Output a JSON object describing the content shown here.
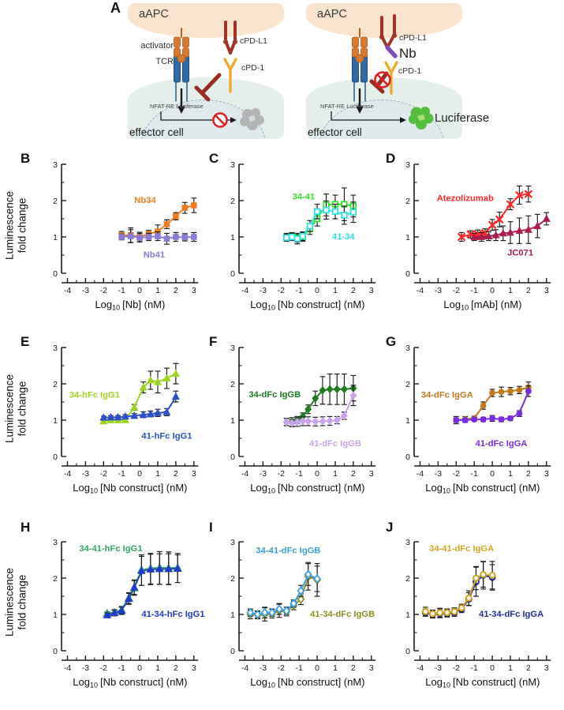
{
  "panel_a": {
    "label": "A",
    "left": {
      "aapc": "aAPC",
      "activator": "activator",
      "tcr": "TCR",
      "cpdl1": "cPD-L1",
      "cpd1": "cPD-1",
      "nfat": "NFAT-RE Luciferase",
      "effector": "effector cell"
    },
    "right": {
      "aapc": "aAPC",
      "cpdl1": "cPD-L1",
      "nb": "Nb",
      "cpd1": "cPD-1",
      "nfat": "NFAT-RE Luciferase",
      "effector": "effector cell",
      "luciferase": "Luciferase"
    }
  },
  "ylabel": {
    "line1": "Luminescence",
    "line2": "fold change"
  },
  "chart_data": [
    {
      "label": "B",
      "type": "line",
      "xlabel_pre": "Log",
      "xlabel_sub": "10",
      "xlabel_post": "[Nb] (nM)",
      "xticks": [
        -4,
        -3,
        -2,
        -1,
        0,
        1,
        2,
        3
      ],
      "yticks": [
        0,
        1,
        2,
        3
      ],
      "ylim": [
        0,
        3
      ],
      "series": [
        {
          "name": "Nb34",
          "color": "#F07E1E",
          "marker": "square",
          "open": false,
          "label_x": 0.3,
          "label_y": 2.0,
          "x": [
            -1,
            -0.5,
            0,
            0.5,
            1,
            1.5,
            2,
            2.5,
            3
          ],
          "y": [
            1.05,
            1.05,
            1.0,
            1.08,
            1.15,
            1.35,
            1.57,
            1.8,
            1.87
          ],
          "err": [
            0.1,
            0.2,
            0.13,
            0.1,
            0.18,
            0.12,
            0.1,
            0.15,
            0.2
          ]
        },
        {
          "name": "Nb41",
          "color": "#8C7BD6",
          "marker": "square",
          "open": false,
          "label_x": 0.8,
          "label_y": 0.5,
          "x": [
            -1,
            -0.5,
            0,
            0.5,
            1,
            1.5,
            2,
            2.5,
            3
          ],
          "y": [
            1.0,
            1.02,
            0.98,
            1.0,
            1.02,
            0.95,
            1.0,
            0.99,
            1.0
          ],
          "err": [
            0.08,
            0.18,
            0.12,
            0.1,
            0.12,
            0.15,
            0.12,
            0.1,
            0.12
          ]
        }
      ]
    },
    {
      "label": "C",
      "type": "line",
      "xlabel_pre": "Log",
      "xlabel_sub": "10",
      "xlabel_post": "[Nb construct] (nM)",
      "xticks": [
        -4,
        -3,
        -2,
        -1,
        0,
        1,
        2,
        3
      ],
      "yticks": [
        0,
        1,
        2,
        3
      ],
      "ylim": [
        0,
        3
      ],
      "series": [
        {
          "name": "34-41",
          "color": "#2FE52F",
          "marker": "square",
          "open": true,
          "label_x": -0.75,
          "label_y": 2.1,
          "x": [
            -1.7,
            -1.4,
            -1.1,
            -0.8,
            -0.4,
            0,
            0.5,
            1,
            1.5,
            2
          ],
          "y": [
            1.0,
            1.02,
            0.98,
            1.0,
            1.22,
            1.5,
            1.88,
            1.9,
            1.9,
            1.85
          ],
          "err": [
            0.1,
            0.1,
            0.12,
            0.12,
            0.15,
            0.2,
            0.3,
            0.25,
            0.45,
            0.3
          ]
        },
        {
          "name": "41-34",
          "color": "#30DFDF",
          "marker": "square",
          "open": true,
          "label_x": 1.45,
          "label_y": 1.0,
          "x": [
            -1.7,
            -1.4,
            -1.1,
            -0.8,
            -0.4,
            0,
            0.5,
            1,
            1.5,
            2
          ],
          "y": [
            0.98,
            1.0,
            0.95,
            1.02,
            1.3,
            1.7,
            1.74,
            1.7,
            1.6,
            1.68
          ],
          "err": [
            0.1,
            0.1,
            0.14,
            0.12,
            0.15,
            0.2,
            0.25,
            0.2,
            0.25,
            0.28
          ]
        }
      ]
    },
    {
      "label": "D",
      "type": "line",
      "xlabel_pre": "Log",
      "xlabel_sub": "10",
      "xlabel_post": "[mAb] (nM)",
      "xticks": [
        -4,
        -3,
        -2,
        -1,
        0,
        1,
        2,
        3
      ],
      "yticks": [
        0,
        1,
        2,
        3
      ],
      "ylim": [
        0,
        3
      ],
      "series": [
        {
          "name": "Atezolizumab",
          "color": "#FF2828",
          "marker": "x",
          "open": false,
          "label_x": -1.5,
          "label_y": 2.05,
          "x": [
            -1.7,
            -1.2,
            -0.8,
            -0.4,
            0,
            0.4,
            1,
            1.5,
            2
          ],
          "y": [
            1.0,
            1.07,
            1.07,
            1.1,
            1.33,
            1.48,
            1.9,
            2.15,
            2.18
          ],
          "err": [
            0.12,
            0.1,
            0.12,
            0.12,
            0.15,
            0.2,
            0.15,
            0.25,
            0.22
          ]
        },
        {
          "name": "JC071",
          "color": "#AC1C4C",
          "marker": "triangle",
          "open": false,
          "label_x": 1.55,
          "label_y": 0.55,
          "x": [
            -1,
            -0.6,
            -0.2,
            0.2,
            0.6,
            1,
            1.5,
            2,
            2.5,
            3
          ],
          "y": [
            1.0,
            1.0,
            1.02,
            1.05,
            1.1,
            1.12,
            1.17,
            1.2,
            1.3,
            1.5
          ],
          "err": [
            0.1,
            0.12,
            0.12,
            0.15,
            0.2,
            0.3,
            0.35,
            0.38,
            0.32,
            0.17
          ]
        }
      ]
    },
    {
      "label": "E",
      "type": "line",
      "xlabel_pre": "Log",
      "xlabel_sub": "10",
      "xlabel_post": "[Nb construct] (nM)",
      "xticks": [
        -4,
        -3,
        -2,
        -1,
        0,
        1,
        2,
        3
      ],
      "yticks": [
        0,
        1,
        2,
        3
      ],
      "ylim": [
        0,
        3
      ],
      "series": [
        {
          "name": "34-hFc IgG1",
          "color": "#9CD41E",
          "marker": "triangle",
          "open": false,
          "label_x": -2.5,
          "label_y": 1.68,
          "x": [
            -2,
            -1.6,
            -1.2,
            -0.8,
            -0.3,
            0.2,
            0.6,
            1,
            1.5,
            2
          ],
          "y": [
            0.97,
            1.0,
            1.0,
            1.0,
            1.35,
            1.9,
            2.1,
            2.05,
            2.15,
            2.28
          ],
          "err": [
            0.05,
            0.05,
            0.06,
            0.06,
            0.08,
            0.15,
            0.25,
            0.3,
            0.28,
            0.28
          ]
        },
        {
          "name": "41-hFc IgG1",
          "color": "#2B50C8",
          "marker": "triangle",
          "open": false,
          "label_x": 1.5,
          "label_y": 0.55,
          "x": [
            -2,
            -1.6,
            -1.2,
            -0.8,
            -0.3,
            0.2,
            0.6,
            1,
            1.5,
            2
          ],
          "y": [
            1.07,
            1.08,
            1.08,
            1.1,
            1.12,
            1.15,
            1.17,
            1.2,
            1.22,
            1.65
          ],
          "err": [
            0.04,
            0.04,
            0.05,
            0.05,
            0.06,
            0.08,
            0.08,
            0.1,
            0.1,
            0.15
          ]
        }
      ]
    },
    {
      "label": "F",
      "type": "line",
      "xlabel_pre": "Log",
      "xlabel_sub": "10",
      "xlabel_post": "[Nb construct] (nM)",
      "xticks": [
        -4,
        -3,
        -2,
        -1,
        0,
        1,
        2,
        3
      ],
      "yticks": [
        0,
        1,
        2,
        3
      ],
      "ylim": [
        0,
        3
      ],
      "series": [
        {
          "name": "34-dFc IgGB",
          "color": "#1E7D1E",
          "marker": "diamond",
          "open": false,
          "label_x": -2.35,
          "label_y": 1.7,
          "x": [
            -1.7,
            -1.4,
            -1.1,
            -0.8,
            -0.5,
            -0.1,
            0.3,
            0.7,
            1.1,
            1.5,
            2
          ],
          "y": [
            0.95,
            0.95,
            1.0,
            1.1,
            1.3,
            1.6,
            1.82,
            1.85,
            1.85,
            1.85,
            1.88
          ],
          "err": [
            0.1,
            0.12,
            0.1,
            0.1,
            0.12,
            0.2,
            0.38,
            0.42,
            0.42,
            0.42,
            0.35
          ]
        },
        {
          "name": "41-dFc IgGB",
          "color": "#C9A4EC",
          "marker": "diamond",
          "open": false,
          "label_x": 1.0,
          "label_y": 0.35,
          "x": [
            -1.7,
            -1.4,
            -1.1,
            -0.8,
            -0.5,
            -0.1,
            0.3,
            0.7,
            1.1,
            1.5,
            2
          ],
          "y": [
            0.95,
            0.92,
            0.95,
            0.97,
            0.97,
            0.96,
            0.97,
            0.98,
            1.0,
            1.12,
            1.68
          ],
          "err": [
            0.1,
            0.1,
            0.12,
            0.12,
            0.12,
            0.12,
            0.12,
            0.12,
            0.1,
            0.1,
            0.28
          ]
        }
      ]
    },
    {
      "label": "G",
      "type": "line",
      "xlabel_pre": "Log",
      "xlabel_sub": "10",
      "xlabel_post": "[Nb construct] (nM)",
      "xticks": [
        -4,
        -3,
        -2,
        -1,
        0,
        1,
        2,
        3
      ],
      "yticks": [
        0,
        1,
        2,
        3
      ],
      "ylim": [
        0,
        3
      ],
      "series": [
        {
          "name": "34-dFc IgGA",
          "color": "#C07A1C",
          "marker": "circle",
          "open": false,
          "label_x": -2.5,
          "label_y": 1.68,
          "x": [
            -2,
            -1.5,
            -1,
            -0.5,
            0,
            0.5,
            1,
            1.5,
            2
          ],
          "y": [
            1.0,
            1.02,
            1.05,
            1.4,
            1.75,
            1.78,
            1.8,
            1.83,
            1.9
          ],
          "err": [
            0.1,
            0.08,
            0.06,
            0.1,
            0.1,
            0.13,
            0.1,
            0.1,
            0.15
          ]
        },
        {
          "name": "41-dFc IgGA",
          "color": "#7C2BE3",
          "marker": "circle",
          "open": false,
          "label_x": 0.5,
          "label_y": 0.35,
          "x": [
            -2,
            -1.5,
            -1,
            -0.5,
            0,
            0.5,
            1,
            1.5,
            2
          ],
          "y": [
            1.0,
            1.0,
            1.02,
            1.02,
            1.05,
            1.02,
            1.05,
            1.18,
            1.8
          ],
          "err": [
            0.06,
            0.05,
            0.05,
            0.06,
            0.08,
            0.06,
            0.06,
            0.08,
            0.15
          ]
        }
      ]
    },
    {
      "label": "H",
      "type": "line",
      "xlabel_pre": "Log",
      "xlabel_sub": "10",
      "xlabel_post": "[Nb construct] (nM)",
      "xticks": [
        -4,
        -3,
        -2,
        -1,
        0,
        1,
        2,
        3
      ],
      "yticks": [
        0,
        1,
        2,
        3
      ],
      "ylim": [
        0,
        3
      ],
      "series": [
        {
          "name": "34-41-hFc IgG1",
          "color": "#36A566",
          "marker": "triangle",
          "open": true,
          "lw": 2.6,
          "label_x": -1.6,
          "label_y": 2.8,
          "x": [
            -1.8,
            -1.4,
            -1,
            -0.6,
            -0.3,
            0.1,
            0.6,
            1.1,
            1.6,
            2.1
          ],
          "y": [
            1.02,
            1.05,
            1.12,
            1.45,
            1.73,
            2.22,
            2.26,
            2.28,
            2.27,
            2.28
          ],
          "err": [
            0.05,
            0.08,
            0.1,
            0.15,
            0.2,
            0.42,
            0.42,
            0.45,
            0.45,
            0.4
          ]
        },
        {
          "name": "41-34-hFc IgG1",
          "color": "#2038CC",
          "marker": "triangle",
          "open": false,
          "lw": 1.5,
          "label_x": 1.85,
          "label_y": 1.0,
          "x": [
            -1.8,
            -1.4,
            -1,
            -0.6,
            -0.3,
            0.1,
            0.6,
            1.1,
            1.6,
            2.1
          ],
          "y": [
            0.98,
            1.04,
            1.1,
            1.43,
            1.75,
            2.2,
            2.24,
            2.25,
            2.25,
            2.26
          ],
          "err": [
            0.06,
            0.08,
            0.1,
            0.15,
            0.2,
            0.4,
            0.42,
            0.42,
            0.42,
            0.38
          ]
        }
      ]
    },
    {
      "label": "I",
      "type": "line",
      "xlabel_pre": "Log",
      "xlabel_sub": "10",
      "xlabel_post": "[Nb construct] (nM)",
      "xticks": [
        -4,
        -3,
        -2,
        -1,
        0,
        1,
        2,
        3
      ],
      "yticks": [
        0,
        1,
        2,
        3
      ],
      "ylim": [
        0,
        3
      ],
      "series": [
        {
          "name": "41-34-dFc IgGB",
          "color": "#8F8F20",
          "marker": "diamond",
          "open": true,
          "label_x": 1.4,
          "label_y": 1.0,
          "x": [
            -3.7,
            -3.3,
            -2.9,
            -2.5,
            -2.1,
            -1.7,
            -1.3,
            -0.9,
            -0.5,
            0
          ],
          "y": [
            1.0,
            0.98,
            1.0,
            1.02,
            1.1,
            1.08,
            1.25,
            1.42,
            2.05,
            1.95
          ],
          "err": [
            0.12,
            0.1,
            0.18,
            0.12,
            0.18,
            0.12,
            0.12,
            0.15,
            0.38,
            0.45
          ]
        },
        {
          "name": "34-41-dFc IgGB",
          "color": "#3E9FE0",
          "marker": "diamond",
          "open": true,
          "label_x": -1.6,
          "label_y": 2.75,
          "x": [
            -3.7,
            -3.3,
            -2.9,
            -2.5,
            -2.1,
            -1.7,
            -1.3,
            -0.9,
            -0.5,
            0
          ],
          "y": [
            1.05,
            1.0,
            1.05,
            1.05,
            1.15,
            1.1,
            1.3,
            1.65,
            2.1,
            1.98
          ],
          "err": [
            0.1,
            0.1,
            0.15,
            0.1,
            0.15,
            0.1,
            0.1,
            0.15,
            0.3,
            0.35
          ]
        }
      ]
    },
    {
      "label": "J",
      "type": "line",
      "xlabel_pre": "Log",
      "xlabel_sub": "10",
      "xlabel_post": "[Nb construct] (nM)",
      "xticks": [
        -4,
        -3,
        -2,
        -1,
        0,
        1,
        2,
        3
      ],
      "yticks": [
        0,
        1,
        2,
        3
      ],
      "ylim": [
        0,
        3
      ],
      "series": [
        {
          "name": "41-34-dFc IgGA",
          "color": "#202D9E",
          "marker": "circle",
          "open": true,
          "label_x": 1.05,
          "label_y": 1.0,
          "x": [
            -3.7,
            -3.3,
            -2.9,
            -2.5,
            -2.1,
            -1.7,
            -1.3,
            -0.9,
            -0.5,
            0
          ],
          "y": [
            1.05,
            1.0,
            1.03,
            1.03,
            1.05,
            1.15,
            1.42,
            1.9,
            2.08,
            2.02
          ],
          "err": [
            0.1,
            0.1,
            0.12,
            0.1,
            0.1,
            0.1,
            0.18,
            0.4,
            0.38,
            0.35
          ]
        },
        {
          "name": "34-41-dFc IgGA",
          "color": "#D6A51F",
          "marker": "circle",
          "open": true,
          "label_x": -1.7,
          "label_y": 2.8,
          "x": [
            -3.7,
            -3.3,
            -2.9,
            -2.5,
            -2.1,
            -1.7,
            -1.3,
            -0.9,
            -0.5,
            0
          ],
          "y": [
            1.08,
            1.02,
            1.05,
            1.05,
            1.08,
            1.18,
            1.45,
            2.0,
            2.1,
            2.08
          ],
          "err": [
            0.12,
            0.1,
            0.12,
            0.1,
            0.1,
            0.1,
            0.2,
            0.32,
            0.35,
            0.38
          ]
        }
      ]
    }
  ]
}
